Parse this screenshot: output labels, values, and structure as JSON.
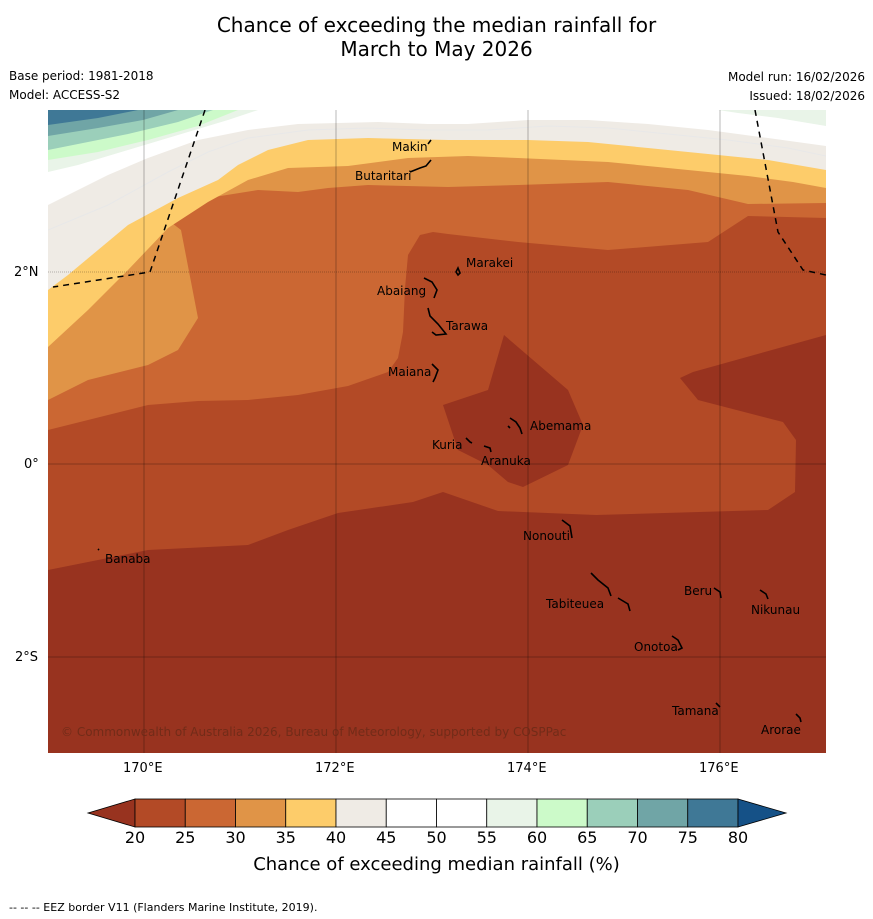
{
  "title": {
    "line1": "Chance of exceeding the median rainfall for",
    "line2": "March to May 2026"
  },
  "meta": {
    "base_period": "Base period: 1981-2018",
    "model": "Model: ACCESS-S2",
    "model_run": "Model run: 16/02/2026",
    "issued": "Issued: 18/02/2026"
  },
  "map": {
    "places": {
      "makin": "Makin",
      "butaritari": "Butaritari",
      "marakei": "Marakei",
      "abaiang": "Abaiang",
      "tarawa": "Tarawa",
      "maiana": "Maiana",
      "abemama": "Abemama",
      "kuria": "Kuria",
      "aranuka": "Aranuka",
      "nonouti": "Nonouti",
      "banaba": "Banaba",
      "beru": "Beru",
      "nikunau": "Nikunau",
      "tabiteuea": "Tabiteuea",
      "onotoa": "Onotoa",
      "tamana": "Tamana",
      "arorae": "Arorae"
    },
    "lat_labels": {
      "n2": "2°N",
      "eq": "0°",
      "s2": "2°S"
    },
    "lon_labels": {
      "e170": "170°E",
      "e172": "172°E",
      "e174": "174°E",
      "e176": "176°E"
    },
    "copyright": "© Commonwealth of Australia 2026, Bureau of Meteorology, supported by COSPPac"
  },
  "colorbar": {
    "ticks": [
      "20",
      "25",
      "30",
      "35",
      "40",
      "45",
      "50",
      "55",
      "60",
      "65",
      "70",
      "75",
      "80"
    ],
    "colors": [
      "#98331f",
      "#b34a26",
      "#cb6733",
      "#e09447",
      "#fdcc6a",
      "#efebe5",
      "#ffffff",
      "#ffffff",
      "#e9f4e8",
      "#ccfac9",
      "#9bcfba",
      "#70a5a6",
      "#3f7896",
      "#155187"
    ],
    "title": "Chance of exceeding median rainfall (%)"
  },
  "footnote": "--  --  -- EEZ border V11 (Flanders Marine Institute, 2019)."
}
